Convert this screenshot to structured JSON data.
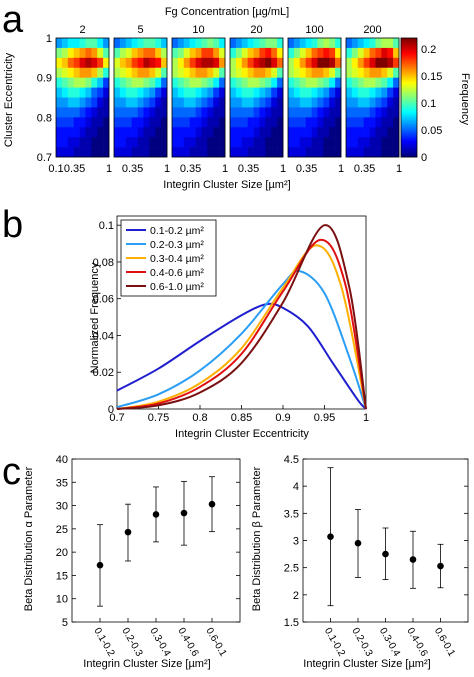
{
  "panel_labels": {
    "a": "a",
    "b": "b",
    "c": "c"
  },
  "chart_data": [
    {
      "type": "heatmap",
      "panel": "a",
      "title": "Fg Concentration [µg/mL]",
      "panel_titles": [
        "2",
        "5",
        "10",
        "20",
        "100",
        "200"
      ],
      "ylabel": "Cluster Eccentricity",
      "xlabel": "Integrin Cluster Size [µm²]",
      "x_ticks": [
        "0.1",
        "0.35",
        "1"
      ],
      "y_ticks": [
        "1",
        "0.9",
        "0.8",
        "0.7"
      ],
      "xlim": [
        0.1,
        1
      ],
      "ylim": [
        0.7,
        1
      ],
      "colorbar": {
        "label": "Frequency",
        "ticks": [
          "0.2",
          "0.15",
          "0.1",
          "0.05",
          "0"
        ],
        "range": [
          0,
          0.22
        ]
      },
      "grid_size": {
        "rows": 12,
        "cols": 9
      },
      "colors": [
        "#00008f",
        "#0000ff",
        "#007fff",
        "#00ffff",
        "#7fff7f",
        "#ffff00",
        "#ff7f00",
        "#ff0000",
        "#7f0000"
      ],
      "matrices": [
        [
          [
            0.06,
            0.07,
            0.08,
            0.08,
            0.09,
            0.1,
            0.1,
            0.08,
            0.06
          ],
          [
            0.11,
            0.12,
            0.14,
            0.15,
            0.16,
            0.17,
            0.16,
            0.13,
            0.1
          ],
          [
            0.14,
            0.15,
            0.17,
            0.18,
            0.2,
            0.21,
            0.2,
            0.18,
            0.14
          ],
          [
            0.12,
            0.13,
            0.14,
            0.15,
            0.16,
            0.16,
            0.15,
            0.12,
            0.09
          ],
          [
            0.09,
            0.1,
            0.11,
            0.12,
            0.12,
            0.11,
            0.09,
            0.07,
            0.04
          ],
          [
            0.07,
            0.08,
            0.09,
            0.09,
            0.08,
            0.07,
            0.05,
            0.04,
            0.02
          ],
          [
            0.06,
            0.06,
            0.07,
            0.07,
            0.06,
            0.05,
            0.04,
            0.02,
            0.01
          ],
          [
            0.05,
            0.05,
            0.05,
            0.05,
            0.04,
            0.03,
            0.02,
            0.01,
            0.01
          ],
          [
            0.04,
            0.04,
            0.04,
            0.03,
            0.03,
            0.02,
            0.01,
            0.01,
            0.0
          ],
          [
            0.03,
            0.03,
            0.03,
            0.03,
            0.02,
            0.01,
            0.01,
            0.0,
            0.0
          ],
          [
            0.03,
            0.03,
            0.02,
            0.02,
            0.01,
            0.01,
            0.0,
            0.0,
            0.0
          ],
          [
            0.02,
            0.02,
            0.02,
            0.01,
            0.01,
            0.01,
            0.0,
            0.0,
            0.0
          ]
        ],
        [
          [
            0.05,
            0.06,
            0.07,
            0.08,
            0.09,
            0.1,
            0.1,
            0.09,
            0.07
          ],
          [
            0.1,
            0.12,
            0.13,
            0.15,
            0.16,
            0.17,
            0.17,
            0.15,
            0.12
          ],
          [
            0.13,
            0.15,
            0.16,
            0.18,
            0.19,
            0.21,
            0.2,
            0.19,
            0.15
          ],
          [
            0.12,
            0.13,
            0.14,
            0.15,
            0.16,
            0.16,
            0.15,
            0.13,
            0.1
          ],
          [
            0.09,
            0.1,
            0.11,
            0.12,
            0.12,
            0.11,
            0.1,
            0.08,
            0.05
          ],
          [
            0.07,
            0.08,
            0.09,
            0.09,
            0.08,
            0.07,
            0.06,
            0.04,
            0.02
          ],
          [
            0.06,
            0.06,
            0.07,
            0.07,
            0.06,
            0.05,
            0.04,
            0.02,
            0.01
          ],
          [
            0.05,
            0.05,
            0.05,
            0.05,
            0.04,
            0.03,
            0.02,
            0.01,
            0.01
          ],
          [
            0.04,
            0.04,
            0.04,
            0.03,
            0.03,
            0.02,
            0.01,
            0.01,
            0.0
          ],
          [
            0.03,
            0.03,
            0.03,
            0.03,
            0.02,
            0.01,
            0.01,
            0.0,
            0.0
          ],
          [
            0.03,
            0.03,
            0.02,
            0.02,
            0.01,
            0.01,
            0.0,
            0.0,
            0.0
          ],
          [
            0.02,
            0.02,
            0.02,
            0.01,
            0.01,
            0.01,
            0.0,
            0.0,
            0.0
          ]
        ],
        [
          [
            0.05,
            0.06,
            0.07,
            0.08,
            0.09,
            0.1,
            0.11,
            0.1,
            0.08
          ],
          [
            0.1,
            0.11,
            0.13,
            0.15,
            0.16,
            0.18,
            0.18,
            0.16,
            0.13
          ],
          [
            0.12,
            0.14,
            0.16,
            0.18,
            0.2,
            0.21,
            0.21,
            0.2,
            0.16
          ],
          [
            0.12,
            0.13,
            0.14,
            0.15,
            0.16,
            0.16,
            0.15,
            0.13,
            0.1
          ],
          [
            0.09,
            0.1,
            0.11,
            0.12,
            0.12,
            0.11,
            0.1,
            0.08,
            0.05
          ],
          [
            0.07,
            0.08,
            0.09,
            0.09,
            0.08,
            0.07,
            0.06,
            0.04,
            0.02
          ],
          [
            0.06,
            0.06,
            0.07,
            0.07,
            0.06,
            0.05,
            0.04,
            0.02,
            0.01
          ],
          [
            0.05,
            0.05,
            0.05,
            0.05,
            0.04,
            0.03,
            0.02,
            0.01,
            0.01
          ],
          [
            0.04,
            0.04,
            0.04,
            0.03,
            0.03,
            0.02,
            0.01,
            0.01,
            0.0
          ],
          [
            0.03,
            0.03,
            0.03,
            0.03,
            0.02,
            0.01,
            0.01,
            0.0,
            0.0
          ],
          [
            0.03,
            0.03,
            0.02,
            0.02,
            0.01,
            0.01,
            0.0,
            0.0,
            0.0
          ],
          [
            0.02,
            0.02,
            0.02,
            0.01,
            0.01,
            0.01,
            0.0,
            0.0,
            0.0
          ]
        ],
        [
          [
            0.05,
            0.06,
            0.07,
            0.08,
            0.09,
            0.1,
            0.11,
            0.11,
            0.09
          ],
          [
            0.09,
            0.11,
            0.13,
            0.15,
            0.16,
            0.18,
            0.19,
            0.17,
            0.14
          ],
          [
            0.12,
            0.14,
            0.16,
            0.18,
            0.2,
            0.21,
            0.22,
            0.2,
            0.17
          ],
          [
            0.12,
            0.13,
            0.14,
            0.15,
            0.16,
            0.16,
            0.15,
            0.13,
            0.1
          ],
          [
            0.09,
            0.1,
            0.11,
            0.12,
            0.12,
            0.11,
            0.1,
            0.08,
            0.05
          ],
          [
            0.07,
            0.08,
            0.09,
            0.09,
            0.08,
            0.07,
            0.06,
            0.04,
            0.02
          ],
          [
            0.06,
            0.06,
            0.07,
            0.07,
            0.06,
            0.05,
            0.04,
            0.02,
            0.01
          ],
          [
            0.05,
            0.05,
            0.05,
            0.05,
            0.04,
            0.03,
            0.02,
            0.01,
            0.01
          ],
          [
            0.04,
            0.04,
            0.04,
            0.03,
            0.03,
            0.02,
            0.01,
            0.01,
            0.0
          ],
          [
            0.03,
            0.03,
            0.03,
            0.03,
            0.02,
            0.01,
            0.01,
            0.0,
            0.0
          ],
          [
            0.03,
            0.03,
            0.02,
            0.02,
            0.01,
            0.01,
            0.0,
            0.0,
            0.0
          ],
          [
            0.02,
            0.02,
            0.02,
            0.01,
            0.01,
            0.01,
            0.0,
            0.0,
            0.0
          ]
        ],
        [
          [
            0.05,
            0.06,
            0.07,
            0.08,
            0.09,
            0.11,
            0.12,
            0.11,
            0.09
          ],
          [
            0.09,
            0.11,
            0.13,
            0.15,
            0.17,
            0.18,
            0.19,
            0.18,
            0.14
          ],
          [
            0.12,
            0.14,
            0.16,
            0.18,
            0.2,
            0.22,
            0.22,
            0.21,
            0.17
          ],
          [
            0.12,
            0.13,
            0.14,
            0.15,
            0.16,
            0.16,
            0.15,
            0.13,
            0.1
          ],
          [
            0.09,
            0.1,
            0.11,
            0.12,
            0.12,
            0.11,
            0.1,
            0.08,
            0.05
          ],
          [
            0.07,
            0.08,
            0.09,
            0.09,
            0.08,
            0.07,
            0.06,
            0.04,
            0.02
          ],
          [
            0.06,
            0.06,
            0.07,
            0.07,
            0.06,
            0.05,
            0.04,
            0.02,
            0.01
          ],
          [
            0.05,
            0.05,
            0.05,
            0.05,
            0.04,
            0.03,
            0.02,
            0.01,
            0.01
          ],
          [
            0.04,
            0.04,
            0.04,
            0.03,
            0.03,
            0.02,
            0.01,
            0.01,
            0.0
          ],
          [
            0.03,
            0.03,
            0.03,
            0.03,
            0.02,
            0.01,
            0.01,
            0.0,
            0.0
          ],
          [
            0.03,
            0.03,
            0.02,
            0.02,
            0.01,
            0.01,
            0.0,
            0.0,
            0.0
          ],
          [
            0.02,
            0.02,
            0.02,
            0.01,
            0.01,
            0.01,
            0.0,
            0.0,
            0.0
          ]
        ],
        [
          [
            0.05,
            0.06,
            0.07,
            0.08,
            0.09,
            0.11,
            0.12,
            0.12,
            0.1
          ],
          [
            0.09,
            0.11,
            0.13,
            0.15,
            0.17,
            0.18,
            0.2,
            0.19,
            0.15
          ],
          [
            0.12,
            0.14,
            0.16,
            0.18,
            0.2,
            0.22,
            0.22,
            0.21,
            0.18
          ],
          [
            0.12,
            0.13,
            0.14,
            0.15,
            0.16,
            0.16,
            0.15,
            0.13,
            0.1
          ],
          [
            0.09,
            0.1,
            0.11,
            0.12,
            0.12,
            0.11,
            0.1,
            0.08,
            0.05
          ],
          [
            0.07,
            0.08,
            0.09,
            0.09,
            0.08,
            0.07,
            0.06,
            0.04,
            0.02
          ],
          [
            0.06,
            0.06,
            0.07,
            0.07,
            0.06,
            0.05,
            0.04,
            0.02,
            0.01
          ],
          [
            0.05,
            0.05,
            0.05,
            0.05,
            0.04,
            0.03,
            0.02,
            0.01,
            0.01
          ],
          [
            0.04,
            0.04,
            0.04,
            0.03,
            0.03,
            0.02,
            0.01,
            0.01,
            0.0
          ],
          [
            0.03,
            0.03,
            0.03,
            0.03,
            0.02,
            0.01,
            0.01,
            0.0,
            0.0
          ],
          [
            0.03,
            0.03,
            0.02,
            0.02,
            0.01,
            0.01,
            0.0,
            0.0,
            0.0
          ],
          [
            0.02,
            0.02,
            0.02,
            0.01,
            0.01,
            0.01,
            0.0,
            0.0,
            0.0
          ]
        ]
      ]
    },
    {
      "type": "line",
      "panel": "b",
      "xlabel": "Integrin Cluster Eccentricity",
      "ylabel": "Normalized Frequency",
      "xlim": [
        0.7,
        1
      ],
      "ylim": [
        0,
        0.105
      ],
      "x_ticks": [
        "0.7",
        "0.75",
        "0.8",
        "0.85",
        "0.9",
        "0.95",
        "1"
      ],
      "y_ticks": [
        "0",
        "0.02",
        "0.04",
        "0.06",
        "0.08",
        "0.1"
      ],
      "legend_position": "top-left",
      "series": [
        {
          "name": "0.1-0.2 µm²",
          "color": "#1f1fcf",
          "peak_x": 0.88,
          "peak_y": 0.057,
          "x": [
            0.7,
            0.75,
            0.8,
            0.85,
            0.88,
            0.9,
            0.93,
            0.96,
            0.99,
            1.0
          ],
          "y": [
            0.01,
            0.022,
            0.037,
            0.051,
            0.057,
            0.055,
            0.045,
            0.025,
            0.005,
            0.0
          ]
        },
        {
          "name": "0.2-0.3 µm²",
          "color": "#2a9df4",
          "peak_x": 0.92,
          "peak_y": 0.075,
          "x": [
            0.7,
            0.75,
            0.8,
            0.85,
            0.9,
            0.92,
            0.95,
            0.98,
            1.0
          ],
          "y": [
            0.001,
            0.008,
            0.021,
            0.041,
            0.068,
            0.075,
            0.063,
            0.028,
            0.0
          ]
        },
        {
          "name": "0.3-0.4 µm²",
          "color": "#ffb000",
          "peak_x": 0.94,
          "peak_y": 0.089,
          "x": [
            0.7,
            0.75,
            0.8,
            0.85,
            0.9,
            0.94,
            0.97,
            1.0
          ],
          "y": [
            0.0,
            0.004,
            0.014,
            0.033,
            0.066,
            0.089,
            0.067,
            0.0
          ]
        },
        {
          "name": "0.4-0.6 µm²",
          "color": "#e01010",
          "peak_x": 0.945,
          "peak_y": 0.092,
          "x": [
            0.7,
            0.75,
            0.8,
            0.85,
            0.9,
            0.945,
            0.975,
            1.0
          ],
          "y": [
            0.0,
            0.003,
            0.012,
            0.03,
            0.064,
            0.092,
            0.068,
            0.0
          ]
        },
        {
          "name": "0.6-1.0 µm²",
          "color": "#7a1010",
          "peak_x": 0.95,
          "peak_y": 0.1,
          "x": [
            0.7,
            0.75,
            0.8,
            0.85,
            0.9,
            0.95,
            0.98,
            1.0
          ],
          "y": [
            0.0,
            0.002,
            0.009,
            0.025,
            0.058,
            0.1,
            0.066,
            0.0
          ]
        }
      ]
    },
    {
      "type": "scatter",
      "panel": "c-left",
      "xlabel": "Integrin Cluster Size [µm²]",
      "ylabel": "Beta Distribution α Parameter",
      "categories": [
        "0.1-0.2",
        "0.2-0.3",
        "0.3-0.4",
        "0.4-0.6",
        "0.6-0.1"
      ],
      "values": [
        17.2,
        24.3,
        28.1,
        28.4,
        30.3
      ],
      "err_low": [
        8.4,
        18.1,
        22.2,
        21.5,
        24.4
      ],
      "err_high": [
        25.9,
        30.3,
        34.0,
        35.2,
        36.2
      ],
      "ylim": [
        5,
        40
      ],
      "y_ticks": [
        "5",
        "10",
        "15",
        "20",
        "25",
        "30",
        "35",
        "40"
      ]
    },
    {
      "type": "scatter",
      "panel": "c-right",
      "xlabel": "Integrin Cluster Size [µm²]",
      "ylabel": "Beta Distribution β Parameter",
      "categories": [
        "0.1-0.2",
        "0.2-0.3",
        "0.3-0.4",
        "0.4-0.6",
        "0.6-0.1"
      ],
      "values": [
        3.07,
        2.95,
        2.75,
        2.65,
        2.53
      ],
      "err_low": [
        1.8,
        2.32,
        2.28,
        2.12,
        2.13
      ],
      "err_high": [
        4.34,
        3.57,
        3.23,
        3.17,
        2.93
      ],
      "ylim": [
        1.5,
        4.5
      ],
      "y_ticks": [
        "1.5",
        "2",
        "2.5",
        "3",
        "3.5",
        "4",
        "4.5"
      ]
    }
  ]
}
